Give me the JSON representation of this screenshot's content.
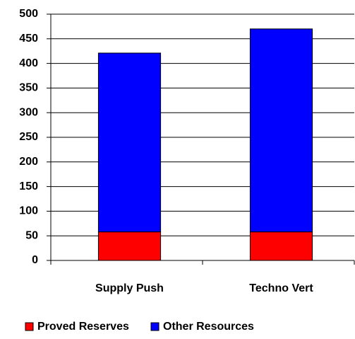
{
  "chart_data": {
    "type": "stacked_bar",
    "categories": [
      "Supply Push",
      "Techno Vert"
    ],
    "series": [
      {
        "name": "Proved Reserves",
        "color": "#ff0000",
        "values": [
          58,
          58
        ]
      },
      {
        "name": "Other Resources",
        "color": "#0000ff",
        "values": [
          363,
          412
        ]
      }
    ],
    "ylim": [
      0,
      500
    ],
    "yticks": [
      0,
      50,
      100,
      150,
      200,
      250,
      300,
      350,
      400,
      450,
      500
    ],
    "grid": true,
    "legend": "bottom"
  }
}
